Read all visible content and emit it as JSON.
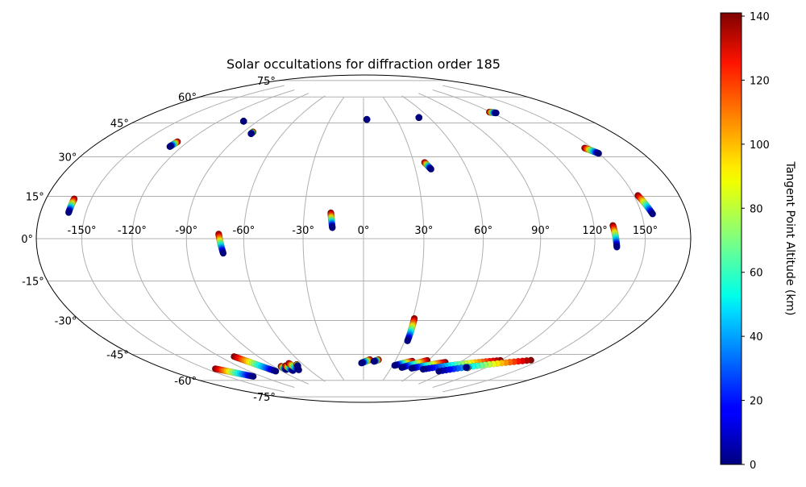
{
  "chart_data": {
    "type": "scatter",
    "projection": "hammer",
    "title": "Solar occultations for diffraction order 185",
    "xlabel": "",
    "ylabel": "",
    "grid": true,
    "lon_ticks": [
      -150,
      -120,
      -90,
      -60,
      -30,
      0,
      30,
      60,
      90,
      120,
      150
    ],
    "lon_tick_labels": [
      "-150°",
      "-120°",
      "-90°",
      "-60°",
      "-30°",
      "0°",
      "30°",
      "60°",
      "90°",
      "120°",
      "150°"
    ],
    "lat_ticks": [
      75,
      60,
      45,
      30,
      15,
      0,
      -15,
      -30,
      -45,
      -60,
      -75
    ],
    "lat_tick_labels": [
      "75°",
      "60°",
      "45°",
      "30°",
      "15°",
      "0°",
      "-15°",
      "-30°",
      "-45°",
      "-60°",
      "-75°"
    ],
    "colorbar": {
      "label": "Tangent Point Altitude (km)",
      "colormap": "jet",
      "range": [
        0,
        141
      ],
      "ticks": [
        0,
        20,
        40,
        60,
        80,
        100,
        120,
        140
      ],
      "tick_labels": [
        "0",
        "20",
        "40",
        "60",
        "80",
        "100",
        "120",
        "140"
      ]
    },
    "tracks": [
      {
        "lon_start": -161.0,
        "lat_start": 15.2,
        "lon_end": -161.0,
        "lat_end": 9.9,
        "alt_start": 140,
        "alt_end": 0
      },
      {
        "lon_start": -127.0,
        "lat_start": 43.0,
        "lon_end": -128.0,
        "lat_end": 40.5,
        "alt_start": 140,
        "alt_end": 0
      },
      {
        "lon_start": -101.0,
        "lat_start": 56.5,
        "lon_end": -101.0,
        "lat_end": 56.5,
        "alt_start": 140,
        "alt_end": 0
      },
      {
        "lon_start": -83.0,
        "lat_start": 52.0,
        "lon_end": -83.0,
        "lat_end": 51.0,
        "alt_start": 140,
        "alt_end": 0
      },
      {
        "lon_start": -73.0,
        "lat_start": 2.2,
        "lon_end": -71.0,
        "lat_end": -6.9,
        "alt_start": 140,
        "alt_end": 0
      },
      {
        "lon_start": -16.5,
        "lat_start": 12.8,
        "lon_end": -15.5,
        "lat_end": 5.4,
        "alt_start": 140,
        "alt_end": 0
      },
      {
        "lon_start": 3.0,
        "lat_start": 62.0,
        "lon_end": 3.0,
        "lat_end": 62.0,
        "alt_start": 140,
        "alt_end": 0
      },
      {
        "lon_start": 36.5,
        "lat_start": 38.0,
        "lon_end": 39.0,
        "lat_end": 34.5,
        "alt_start": 140,
        "alt_end": 0
      },
      {
        "lon_start": 51.0,
        "lat_start": 62.0,
        "lon_end": 51.0,
        "lat_end": 62.0,
        "alt_start": 140,
        "alt_end": 0
      },
      {
        "lon_start": 119.0,
        "lat_start": 60.0,
        "lon_end": 123.0,
        "lat_end": 59.0,
        "alt_start": 140,
        "alt_end": 0
      },
      {
        "lon_start": 131.0,
        "lat_start": 5.5,
        "lon_end": 133.0,
        "lat_end": -3.5,
        "alt_start": 140,
        "alt_end": 0
      },
      {
        "lon_start": 145.0,
        "lat_start": 38.0,
        "lon_end": 150.0,
        "lat_end": 35.0,
        "alt_start": 140,
        "alt_end": 0
      },
      {
        "lon_start": 152.5,
        "lat_start": 17.0,
        "lon_end": 157.0,
        "lat_end": 9.5,
        "alt_start": 140,
        "alt_end": 0
      },
      {
        "lon_start": 31.0,
        "lat_start": -40.0,
        "lon_end": 32.0,
        "lat_end": -52.0,
        "alt_start": 140,
        "alt_end": 0
      },
      {
        "lon_start": -143.0,
        "lat_start": -59.0,
        "lon_end": -128.0,
        "lat_end": -66.0,
        "alt_start": 140,
        "alt_end": 0
      },
      {
        "lon_start": -109.0,
        "lat_start": -56.0,
        "lon_end": -96.0,
        "lat_end": -66.0,
        "alt_start": 140,
        "alt_end": 0
      },
      {
        "lon_start": -83.0,
        "lat_start": -64.0,
        "lon_end": -83.0,
        "lat_end": -66.0,
        "alt_start": 140,
        "alt_end": 0
      },
      {
        "lon_start": -78.0,
        "lat_start": -64.0,
        "lon_end": -78.0,
        "lat_end": -67.0,
        "alt_start": 140,
        "alt_end": 0
      },
      {
        "lon_start": -72.0,
        "lat_start": -63.0,
        "lon_end": -71.0,
        "lat_end": -67.0,
        "alt_start": 140,
        "alt_end": 0
      },
      {
        "lon_start": -66.0,
        "lat_start": -64.0,
        "lon_end": -67.0,
        "lat_end": -65.0,
        "alt_start": 140,
        "alt_end": 0
      },
      {
        "lon_start": 6.0,
        "lat_start": -63.0,
        "lon_end": -2.0,
        "lat_end": -65.0,
        "alt_start": 140,
        "alt_end": 0
      },
      {
        "lon_start": 14.0,
        "lat_start": -63.0,
        "lon_end": 10.0,
        "lat_end": -64.0,
        "alt_start": 140,
        "alt_end": 0
      },
      {
        "lon_start": 46.0,
        "lat_start": -63.0,
        "lon_end": 32.0,
        "lat_end": -66.0,
        "alt_start": 140,
        "alt_end": 0
      },
      {
        "lon_start": 59.0,
        "lat_start": -62.0,
        "lon_end": 41.0,
        "lat_end": -67.0,
        "alt_start": 140,
        "alt_end": 0
      },
      {
        "lon_start": 77.0,
        "lat_start": -62.0,
        "lon_end": 52.0,
        "lat_end": -67.0,
        "alt_start": 140,
        "alt_end": 0
      },
      {
        "lon_start": 120.0,
        "lat_start": -57.0,
        "lon_end": 65.0,
        "lat_end": -67.0,
        "alt_start": 140,
        "alt_end": 0
      },
      {
        "lon_start": 143.0,
        "lat_start": -54.0,
        "lon_end": 84.0,
        "lat_end": -67.0,
        "alt_start": 140,
        "alt_end": 0
      },
      {
        "lon_start": 105.0,
        "lat_start": -63.0,
        "lon_end": 103.0,
        "lat_end": -63.0,
        "alt_start": 140,
        "alt_end": 0
      }
    ]
  }
}
